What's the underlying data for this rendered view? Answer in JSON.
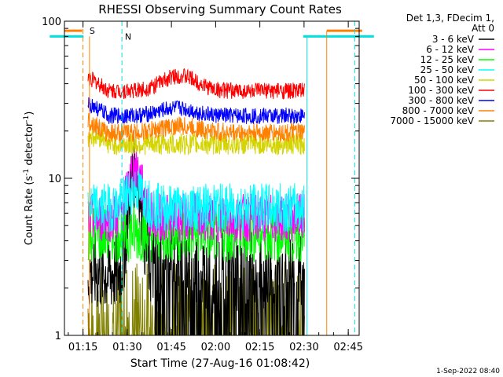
{
  "chart_data": {
    "type": "line",
    "title": "RHESSI Observing Summary Count Rates",
    "xlabel": "Start Time (27-Aug-16 01:08:42)",
    "ylabel_main": "Count Rate (s",
    "ylabel_sup1": "-1",
    "ylabel_mid": " detector",
    "ylabel_sup2": "-1",
    "ylabel_end": ")",
    "y_scale": "log",
    "ylim": [
      1,
      100
    ],
    "xlim_minutes": [
      0,
      100
    ],
    "x_ticks": [
      {
        "label": "01:15",
        "m": 6.3
      },
      {
        "label": "01:30",
        "m": 21.3
      },
      {
        "label": "01:45",
        "m": 36.3
      },
      {
        "label": "02:00",
        "m": 51.3
      },
      {
        "label": "02:15",
        "m": 66.3
      },
      {
        "label": "02:30",
        "m": 81.3
      },
      {
        "label": "02:45",
        "m": 96.3
      }
    ],
    "y_ticks": [
      {
        "label": "1",
        "v": 1
      },
      {
        "label": "10",
        "v": 10
      },
      {
        "label": "100",
        "v": 100
      }
    ],
    "legend": {
      "header_1": "Det 1,3, FDecim 1,",
      "header_2": "Att 0",
      "position": "right"
    },
    "series": [
      {
        "name": "3 - 6 keV",
        "color": "#000000"
      },
      {
        "name": "6 - 12 keV",
        "color": "#ff00ff"
      },
      {
        "name": "12 - 25 keV",
        "color": "#00ff00"
      },
      {
        "name": "25 - 50 keV",
        "color": "#00ffff"
      },
      {
        "name": "50 - 100 keV",
        "color": "#d4d400"
      },
      {
        "name": "100 - 300 keV",
        "color": "#ff0000"
      },
      {
        "name": "300 - 800 keV",
        "color": "#0000ff"
      },
      {
        "name": "800 - 7000 keV",
        "color": "#ff8000"
      },
      {
        "name": "7000 - 15000 keV",
        "color": "#808000"
      }
    ],
    "data_interval_minutes": [
      8,
      81.5
    ],
    "saa_label": "S",
    "night_label": "N",
    "saa_color": "#ff8000",
    "night_color": "#00e0e0",
    "timestamp": "1-Sep-2022 08:40"
  }
}
